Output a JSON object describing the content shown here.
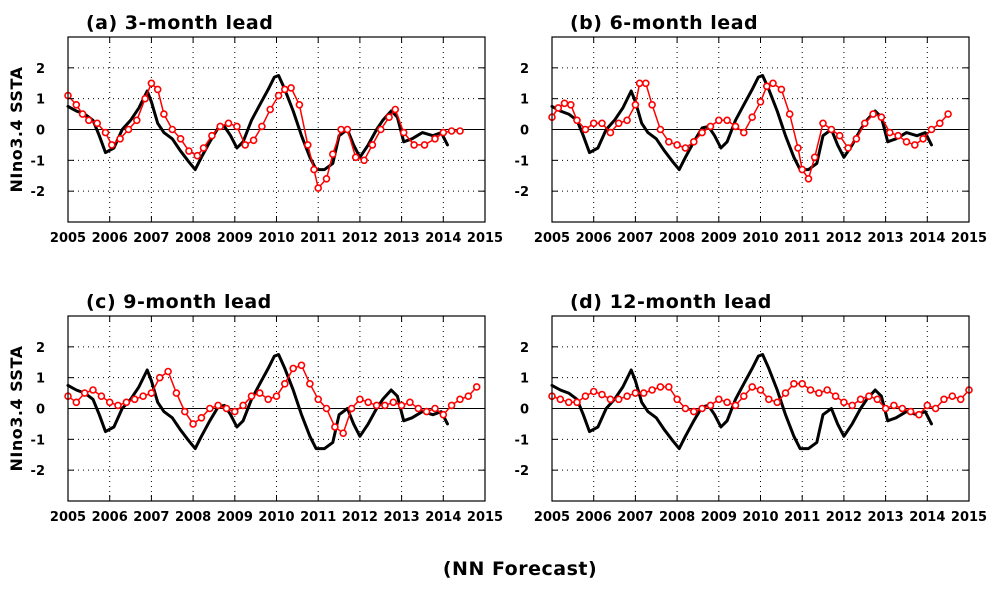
{
  "figure": {
    "caption": "(NN Forecast)",
    "colors": {
      "observed": "#000000",
      "forecast": "#ff0000",
      "zero_line": "#000000"
    }
  },
  "chart_data": [
    {
      "type": "line",
      "title": "(a) 3-month lead",
      "ylabel": "NIno3.4  SSTA",
      "xlabel": "",
      "xlim": [
        2005,
        2015
      ],
      "ylim": [
        -3,
        3
      ],
      "xticks": [
        "2005",
        "2006",
        "2007",
        "2008",
        "2009",
        "2010",
        "2011",
        "2012",
        "2013",
        "2014",
        "2015"
      ],
      "yticks": [
        "-2",
        "-1",
        "0",
        "1",
        "2"
      ],
      "grid": true,
      "series": [
        {
          "style": "line",
          "color": "#000000",
          "x": [
            2005.0,
            2005.2,
            2005.4,
            2005.6,
            2005.75,
            2005.9,
            2006.1,
            2006.3,
            2006.5,
            2006.7,
            2006.9,
            2007.0,
            2007.15,
            2007.3,
            2007.5,
            2007.7,
            2007.9,
            2008.05,
            2008.2,
            2008.4,
            2008.6,
            2008.75,
            2008.9,
            2009.05,
            2009.2,
            2009.4,
            2009.6,
            2009.8,
            2009.95,
            2010.05,
            2010.2,
            2010.4,
            2010.6,
            2010.8,
            2010.95,
            2011.15,
            2011.35,
            2011.5,
            2011.7,
            2011.85,
            2012.0,
            2012.2,
            2012.4,
            2012.55,
            2012.75,
            2012.9,
            2013.05,
            2013.25,
            2013.5,
            2013.75,
            2013.95,
            2014.1
          ],
          "y": [
            0.75,
            0.6,
            0.5,
            0.3,
            -0.2,
            -0.75,
            -0.6,
            0.0,
            0.3,
            0.7,
            1.25,
            0.9,
            0.2,
            -0.1,
            -0.3,
            -0.7,
            -1.05,
            -1.3,
            -0.9,
            -0.4,
            0.05,
            0.1,
            -0.2,
            -0.6,
            -0.4,
            0.3,
            0.8,
            1.3,
            1.7,
            1.75,
            1.3,
            0.6,
            -0.2,
            -0.9,
            -1.3,
            -1.3,
            -1.1,
            -0.2,
            0.0,
            -0.5,
            -0.9,
            -0.5,
            0.0,
            0.3,
            0.6,
            0.4,
            -0.4,
            -0.3,
            -0.1,
            -0.2,
            -0.1,
            -0.5
          ]
        },
        {
          "style": "markers",
          "color": "#ff0000",
          "x": [
            2005.0,
            2005.2,
            2005.35,
            2005.5,
            2005.7,
            2005.9,
            2006.05,
            2006.25,
            2006.45,
            2006.65,
            2006.85,
            2007.0,
            2007.15,
            2007.3,
            2007.5,
            2007.7,
            2007.9,
            2008.1,
            2008.25,
            2008.45,
            2008.65,
            2008.85,
            2009.05,
            2009.25,
            2009.45,
            2009.65,
            2009.85,
            2010.05,
            2010.2,
            2010.35,
            2010.55,
            2010.75,
            2010.9,
            2011.0,
            2011.2,
            2011.35,
            2011.55,
            2011.7,
            2011.9,
            2012.1,
            2012.3,
            2012.5,
            2012.7,
            2012.85,
            2013.05,
            2013.3,
            2013.55,
            2013.8,
            2014.0,
            2014.2,
            2014.4
          ],
          "y": [
            1.1,
            0.8,
            0.5,
            0.3,
            0.2,
            -0.1,
            -0.5,
            -0.3,
            0.0,
            0.3,
            1.0,
            1.5,
            1.3,
            0.5,
            0.0,
            -0.3,
            -0.7,
            -0.85,
            -0.6,
            -0.2,
            0.1,
            0.2,
            0.1,
            -0.5,
            -0.35,
            0.1,
            0.65,
            1.1,
            1.3,
            1.35,
            0.8,
            -0.5,
            -1.3,
            -1.9,
            -1.6,
            -0.8,
            0.0,
            0.0,
            -0.9,
            -1.0,
            -0.5,
            0.0,
            0.4,
            0.65,
            -0.1,
            -0.5,
            -0.5,
            -0.3,
            -0.1,
            -0.05,
            -0.05
          ]
        }
      ]
    },
    {
      "type": "line",
      "title": "(b) 6-month lead",
      "ylabel": "",
      "xlabel": "",
      "xlim": [
        2005,
        2015
      ],
      "ylim": [
        -3,
        3
      ],
      "xticks": [
        "2005",
        "2006",
        "2007",
        "2008",
        "2009",
        "2010",
        "2011",
        "2012",
        "2013",
        "2014",
        "2015"
      ],
      "yticks": [
        "-2",
        "-1",
        "0",
        "1",
        "2"
      ],
      "grid": true,
      "series": [
        {
          "style": "line",
          "color": "#000000",
          "x": [
            2005.0,
            2005.2,
            2005.4,
            2005.6,
            2005.75,
            2005.9,
            2006.1,
            2006.3,
            2006.5,
            2006.7,
            2006.9,
            2007.0,
            2007.15,
            2007.3,
            2007.5,
            2007.7,
            2007.9,
            2008.05,
            2008.2,
            2008.4,
            2008.6,
            2008.75,
            2008.9,
            2009.05,
            2009.2,
            2009.4,
            2009.6,
            2009.8,
            2009.95,
            2010.05,
            2010.2,
            2010.4,
            2010.6,
            2010.8,
            2010.95,
            2011.15,
            2011.35,
            2011.5,
            2011.7,
            2011.85,
            2012.0,
            2012.2,
            2012.4,
            2012.55,
            2012.75,
            2012.9,
            2013.05,
            2013.25,
            2013.5,
            2013.75,
            2013.95,
            2014.1
          ],
          "y": [
            0.75,
            0.6,
            0.5,
            0.3,
            -0.2,
            -0.75,
            -0.6,
            0.0,
            0.3,
            0.7,
            1.25,
            0.9,
            0.2,
            -0.1,
            -0.3,
            -0.7,
            -1.05,
            -1.3,
            -0.9,
            -0.4,
            0.05,
            0.1,
            -0.2,
            -0.6,
            -0.4,
            0.3,
            0.8,
            1.3,
            1.7,
            1.75,
            1.3,
            0.6,
            -0.2,
            -0.9,
            -1.3,
            -1.3,
            -1.1,
            -0.2,
            0.0,
            -0.5,
            -0.9,
            -0.5,
            0.0,
            0.3,
            0.6,
            0.4,
            -0.4,
            -0.3,
            -0.1,
            -0.2,
            -0.1,
            -0.5
          ]
        },
        {
          "style": "markers",
          "color": "#ff0000",
          "x": [
            2005.0,
            2005.15,
            2005.3,
            2005.45,
            2005.6,
            2005.8,
            2006.0,
            2006.2,
            2006.4,
            2006.6,
            2006.8,
            2007.0,
            2007.1,
            2007.25,
            2007.4,
            2007.6,
            2007.8,
            2008.0,
            2008.2,
            2008.4,
            2008.6,
            2008.8,
            2009.0,
            2009.2,
            2009.4,
            2009.6,
            2009.8,
            2010.0,
            2010.15,
            2010.3,
            2010.5,
            2010.7,
            2010.9,
            2011.0,
            2011.15,
            2011.3,
            2011.5,
            2011.7,
            2011.9,
            2012.1,
            2012.3,
            2012.5,
            2012.7,
            2012.9,
            2013.1,
            2013.3,
            2013.5,
            2013.7,
            2013.9,
            2014.1,
            2014.3,
            2014.5
          ],
          "y": [
            0.4,
            0.7,
            0.85,
            0.8,
            0.3,
            0.0,
            0.2,
            0.2,
            -0.1,
            0.2,
            0.3,
            0.8,
            1.5,
            1.5,
            0.8,
            0.0,
            -0.4,
            -0.5,
            -0.6,
            -0.4,
            -0.1,
            0.1,
            0.3,
            0.3,
            0.1,
            -0.1,
            0.4,
            0.9,
            1.4,
            1.5,
            1.3,
            0.5,
            -0.6,
            -1.3,
            -1.6,
            -0.9,
            0.2,
            0.0,
            -0.2,
            -0.6,
            -0.3,
            0.2,
            0.5,
            0.4,
            -0.1,
            -0.2,
            -0.4,
            -0.5,
            -0.3,
            0.0,
            0.2,
            0.5
          ]
        }
      ]
    },
    {
      "type": "line",
      "title": "(c) 9-month lead",
      "ylabel": "NIno3.4  SSTA",
      "xlabel": "",
      "xlim": [
        2005,
        2015
      ],
      "ylim": [
        -3,
        3
      ],
      "xticks": [
        "2005",
        "2006",
        "2007",
        "2008",
        "2009",
        "2010",
        "2011",
        "2012",
        "2013",
        "2014",
        "2015"
      ],
      "yticks": [
        "-2",
        "-1",
        "0",
        "1",
        "2"
      ],
      "grid": true,
      "series": [
        {
          "style": "line",
          "color": "#000000",
          "x": [
            2005.0,
            2005.2,
            2005.4,
            2005.6,
            2005.75,
            2005.9,
            2006.1,
            2006.3,
            2006.5,
            2006.7,
            2006.9,
            2007.0,
            2007.15,
            2007.3,
            2007.5,
            2007.7,
            2007.9,
            2008.05,
            2008.2,
            2008.4,
            2008.6,
            2008.75,
            2008.9,
            2009.05,
            2009.2,
            2009.4,
            2009.6,
            2009.8,
            2009.95,
            2010.05,
            2010.2,
            2010.4,
            2010.6,
            2010.8,
            2010.95,
            2011.15,
            2011.35,
            2011.5,
            2011.7,
            2011.85,
            2012.0,
            2012.2,
            2012.4,
            2012.55,
            2012.75,
            2012.9,
            2013.05,
            2013.25,
            2013.5,
            2013.75,
            2013.95,
            2014.1
          ],
          "y": [
            0.75,
            0.6,
            0.5,
            0.3,
            -0.2,
            -0.75,
            -0.6,
            0.0,
            0.3,
            0.7,
            1.25,
            0.9,
            0.2,
            -0.1,
            -0.3,
            -0.7,
            -1.05,
            -1.3,
            -0.9,
            -0.4,
            0.05,
            0.1,
            -0.2,
            -0.6,
            -0.4,
            0.3,
            0.8,
            1.3,
            1.7,
            1.75,
            1.3,
            0.6,
            -0.2,
            -0.9,
            -1.3,
            -1.3,
            -1.1,
            -0.2,
            0.0,
            -0.5,
            -0.9,
            -0.5,
            0.0,
            0.3,
            0.6,
            0.4,
            -0.4,
            -0.3,
            -0.1,
            -0.2,
            -0.1,
            -0.5
          ]
        },
        {
          "style": "markers",
          "color": "#ff0000",
          "x": [
            2005.0,
            2005.2,
            2005.4,
            2005.6,
            2005.8,
            2006.0,
            2006.2,
            2006.4,
            2006.6,
            2006.8,
            2007.0,
            2007.2,
            2007.4,
            2007.6,
            2007.8,
            2008.0,
            2008.2,
            2008.4,
            2008.6,
            2008.8,
            2009.0,
            2009.2,
            2009.4,
            2009.6,
            2009.8,
            2010.0,
            2010.2,
            2010.4,
            2010.6,
            2010.8,
            2011.0,
            2011.2,
            2011.4,
            2011.6,
            2011.8,
            2012.0,
            2012.2,
            2012.4,
            2012.6,
            2012.8,
            2013.0,
            2013.2,
            2013.4,
            2013.6,
            2013.8,
            2014.0,
            2014.2,
            2014.4,
            2014.6,
            2014.8
          ],
          "y": [
            0.4,
            0.2,
            0.5,
            0.6,
            0.4,
            0.2,
            0.1,
            0.2,
            0.3,
            0.4,
            0.5,
            1.0,
            1.2,
            0.5,
            -0.1,
            -0.5,
            -0.3,
            0.0,
            0.1,
            0.0,
            -0.1,
            0.1,
            0.4,
            0.5,
            0.3,
            0.4,
            0.8,
            1.3,
            1.4,
            0.8,
            0.3,
            0.0,
            -0.6,
            -0.8,
            0.0,
            0.3,
            0.2,
            0.1,
            0.1,
            0.2,
            0.1,
            0.2,
            0.0,
            -0.1,
            0.0,
            -0.2,
            0.1,
            0.3,
            0.4,
            0.7
          ]
        }
      ]
    },
    {
      "type": "line",
      "title": "(d) 12-month lead",
      "ylabel": "",
      "xlabel": "",
      "xlim": [
        2005,
        2015
      ],
      "ylim": [
        -3,
        3
      ],
      "xticks": [
        "2005",
        "2006",
        "2007",
        "2008",
        "2009",
        "2010",
        "2011",
        "2012",
        "2013",
        "2014",
        "2015"
      ],
      "yticks": [
        "-2",
        "-1",
        "0",
        "1",
        "2"
      ],
      "grid": true,
      "series": [
        {
          "style": "line",
          "color": "#000000",
          "x": [
            2005.0,
            2005.2,
            2005.4,
            2005.6,
            2005.75,
            2005.9,
            2006.1,
            2006.3,
            2006.5,
            2006.7,
            2006.9,
            2007.0,
            2007.15,
            2007.3,
            2007.5,
            2007.7,
            2007.9,
            2008.05,
            2008.2,
            2008.4,
            2008.6,
            2008.75,
            2008.9,
            2009.05,
            2009.2,
            2009.4,
            2009.6,
            2009.8,
            2009.95,
            2010.05,
            2010.2,
            2010.4,
            2010.6,
            2010.8,
            2010.95,
            2011.15,
            2011.35,
            2011.5,
            2011.7,
            2011.85,
            2012.0,
            2012.2,
            2012.4,
            2012.55,
            2012.75,
            2012.9,
            2013.05,
            2013.25,
            2013.5,
            2013.75,
            2013.95,
            2014.1
          ],
          "y": [
            0.75,
            0.6,
            0.5,
            0.3,
            -0.2,
            -0.75,
            -0.6,
            0.0,
            0.3,
            0.7,
            1.25,
            0.9,
            0.2,
            -0.1,
            -0.3,
            -0.7,
            -1.05,
            -1.3,
            -0.9,
            -0.4,
            0.05,
            0.1,
            -0.2,
            -0.6,
            -0.4,
            0.3,
            0.8,
            1.3,
            1.7,
            1.75,
            1.3,
            0.6,
            -0.2,
            -0.9,
            -1.3,
            -1.3,
            -1.1,
            -0.2,
            0.0,
            -0.5,
            -0.9,
            -0.5,
            0.0,
            0.3,
            0.6,
            0.4,
            -0.4,
            -0.3,
            -0.1,
            -0.2,
            -0.1,
            -0.5
          ]
        },
        {
          "style": "markers",
          "color": "#ff0000",
          "x": [
            2005.0,
            2005.2,
            2005.4,
            2005.6,
            2005.8,
            2006.0,
            2006.2,
            2006.4,
            2006.6,
            2006.8,
            2007.0,
            2007.2,
            2007.4,
            2007.6,
            2007.8,
            2008.0,
            2008.2,
            2008.4,
            2008.6,
            2008.8,
            2009.0,
            2009.2,
            2009.4,
            2009.6,
            2009.8,
            2010.0,
            2010.2,
            2010.4,
            2010.6,
            2010.8,
            2011.0,
            2011.2,
            2011.4,
            2011.6,
            2011.8,
            2012.0,
            2012.2,
            2012.4,
            2012.6,
            2012.8,
            2013.0,
            2013.2,
            2013.4,
            2013.6,
            2013.8,
            2014.0,
            2014.2,
            2014.4,
            2014.6,
            2014.8,
            2015.0
          ],
          "y": [
            0.4,
            0.3,
            0.2,
            0.2,
            0.4,
            0.55,
            0.45,
            0.3,
            0.3,
            0.4,
            0.5,
            0.5,
            0.6,
            0.7,
            0.7,
            0.3,
            0.0,
            -0.1,
            0.0,
            0.1,
            0.3,
            0.2,
            0.1,
            0.4,
            0.7,
            0.6,
            0.3,
            0.2,
            0.5,
            0.8,
            0.8,
            0.6,
            0.5,
            0.6,
            0.4,
            0.2,
            0.1,
            0.3,
            0.4,
            0.3,
            0.0,
            0.1,
            0.0,
            -0.1,
            -0.2,
            0.1,
            0.0,
            0.3,
            0.4,
            0.3,
            0.6
          ]
        }
      ]
    }
  ]
}
